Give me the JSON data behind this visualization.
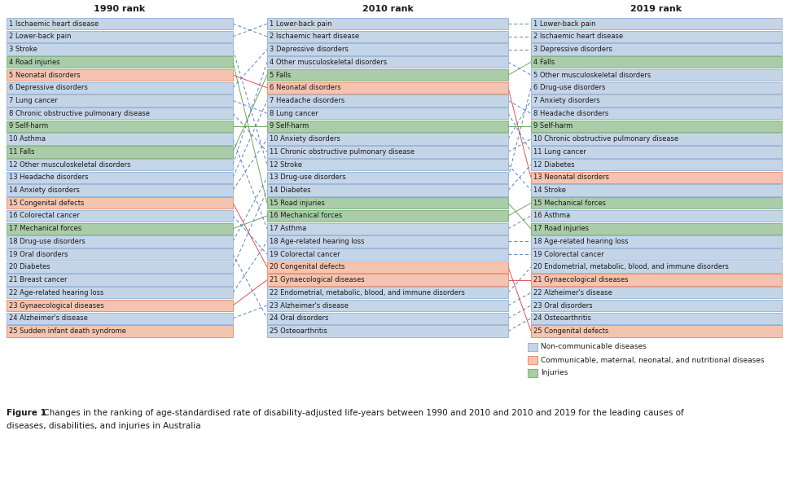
{
  "col1_title": "1990 rank",
  "col2_title": "2010 rank",
  "col3_title": "2019 rank",
  "col1_items": [
    {
      "label": "Ischaemic heart disease",
      "cat": "blue"
    },
    {
      "label": "Lower-back pain",
      "cat": "blue"
    },
    {
      "label": "Stroke",
      "cat": "blue"
    },
    {
      "label": "Road injuries",
      "cat": "green"
    },
    {
      "label": "Neonatal disorders",
      "cat": "red"
    },
    {
      "label": "Depressive disorders",
      "cat": "blue"
    },
    {
      "label": "Lung cancer",
      "cat": "blue"
    },
    {
      "label": "Chronic obstructive pulmonary disease",
      "cat": "blue"
    },
    {
      "label": "Self-harm",
      "cat": "green"
    },
    {
      "label": "Asthma",
      "cat": "blue"
    },
    {
      "label": "Falls",
      "cat": "green"
    },
    {
      "label": "Other musculoskeletal disorders",
      "cat": "blue"
    },
    {
      "label": "Headache disorders",
      "cat": "blue"
    },
    {
      "label": "Anxiety disorders",
      "cat": "blue"
    },
    {
      "label": "Congenital defects",
      "cat": "red"
    },
    {
      "label": "Colorectal cancer",
      "cat": "blue"
    },
    {
      "label": "Mechanical forces",
      "cat": "green"
    },
    {
      "label": "Drug-use disorders",
      "cat": "blue"
    },
    {
      "label": "Oral disorders",
      "cat": "blue"
    },
    {
      "label": "Diabetes",
      "cat": "blue"
    },
    {
      "label": "Breast cancer",
      "cat": "blue"
    },
    {
      "label": "Age-related hearing loss",
      "cat": "blue"
    },
    {
      "label": "Gynaecological diseases",
      "cat": "red"
    },
    {
      "label": "Alzheimer's disease",
      "cat": "blue"
    },
    {
      "label": "Sudden infant death syndrome",
      "cat": "red"
    }
  ],
  "col2_items": [
    {
      "label": "Lower-back pain",
      "cat": "blue"
    },
    {
      "label": "Ischaemic heart disease",
      "cat": "blue"
    },
    {
      "label": "Depressive disorders",
      "cat": "blue"
    },
    {
      "label": "Other musculoskeletal disorders",
      "cat": "blue"
    },
    {
      "label": "Falls",
      "cat": "green"
    },
    {
      "label": "Neonatal disorders",
      "cat": "red"
    },
    {
      "label": "Headache disorders",
      "cat": "blue"
    },
    {
      "label": "Lung cancer",
      "cat": "blue"
    },
    {
      "label": "Self-harm",
      "cat": "green"
    },
    {
      "label": "Anxiety disorders",
      "cat": "blue"
    },
    {
      "label": "Chronic obstructive pulmonary disease",
      "cat": "blue"
    },
    {
      "label": "Stroke",
      "cat": "blue"
    },
    {
      "label": "Drug-use disorders",
      "cat": "blue"
    },
    {
      "label": "Diabetes",
      "cat": "blue"
    },
    {
      "label": "Road injuries",
      "cat": "green"
    },
    {
      "label": "Mechanical forces",
      "cat": "green"
    },
    {
      "label": "Asthma",
      "cat": "blue"
    },
    {
      "label": "Age-related hearing loss",
      "cat": "blue"
    },
    {
      "label": "Colorectal cancer",
      "cat": "blue"
    },
    {
      "label": "Congenital defects",
      "cat": "red"
    },
    {
      "label": "Gynaecological diseases",
      "cat": "red"
    },
    {
      "label": "Endometrial, metabolic, blood, and immune disorders",
      "cat": "blue"
    },
    {
      "label": "Alzheimer's disease",
      "cat": "blue"
    },
    {
      "label": "Oral disorders",
      "cat": "blue"
    },
    {
      "label": "Osteoarthritis",
      "cat": "blue"
    }
  ],
  "col3_items": [
    {
      "label": "Lower-back pain",
      "cat": "blue"
    },
    {
      "label": "Ischaemic heart disease",
      "cat": "blue"
    },
    {
      "label": "Depressive disorders",
      "cat": "blue"
    },
    {
      "label": "Falls",
      "cat": "green"
    },
    {
      "label": "Other musculoskeletal disorders",
      "cat": "blue"
    },
    {
      "label": "Drug-use disorders",
      "cat": "blue"
    },
    {
      "label": "Anxiety disorders",
      "cat": "blue"
    },
    {
      "label": "Headache disorders",
      "cat": "blue"
    },
    {
      "label": "Self-harm",
      "cat": "green"
    },
    {
      "label": "Chronic obstructive pulmonary disease",
      "cat": "blue"
    },
    {
      "label": "Lung cancer",
      "cat": "blue"
    },
    {
      "label": "Diabetes",
      "cat": "blue"
    },
    {
      "label": "Neonatal disorders",
      "cat": "red"
    },
    {
      "label": "Stroke",
      "cat": "blue"
    },
    {
      "label": "Mechanical forces",
      "cat": "green"
    },
    {
      "label": "Asthma",
      "cat": "blue"
    },
    {
      "label": "Road injuries",
      "cat": "green"
    },
    {
      "label": "Age-related hearing loss",
      "cat": "blue"
    },
    {
      "label": "Colorectal cancer",
      "cat": "blue"
    },
    {
      "label": "Endometrial, metabolic, blood, and immune disorders",
      "cat": "blue"
    },
    {
      "label": "Gynaecological diseases",
      "cat": "red"
    },
    {
      "label": "Alzheimer's disease",
      "cat": "blue"
    },
    {
      "label": "Oral disorders",
      "cat": "blue"
    },
    {
      "label": "Osteoarthritis",
      "cat": "blue"
    },
    {
      "label": "Congenital defects",
      "cat": "red"
    }
  ],
  "cat_colors": {
    "blue": {
      "face": "#c5d5e8",
      "edge": "#8aaacf"
    },
    "red": {
      "face": "#f5c4b0",
      "edge": "#e08060"
    },
    "green": {
      "face": "#aacca8",
      "edge": "#70a86e"
    }
  },
  "line_colors": {
    "blue": "#4472c4",
    "red": "#d94040",
    "green": "#5c9e50"
  },
  "legend_items": [
    {
      "label": "Non-communicable diseases",
      "cat": "blue"
    },
    {
      "label": "Communicable, maternal, neonatal, and nutritional diseases",
      "cat": "red"
    },
    {
      "label": "Injuries",
      "cat": "green"
    }
  ],
  "caption_bold": "Figure 1",
  "caption_rest": " Changes in the ranking of age-standardised rate of disability-adjusted life-years between 1990 and 2010 and 2010 and 2019 for the leading causes of",
  "caption_line2": "diseases, disabilities, and injuries in Australia"
}
